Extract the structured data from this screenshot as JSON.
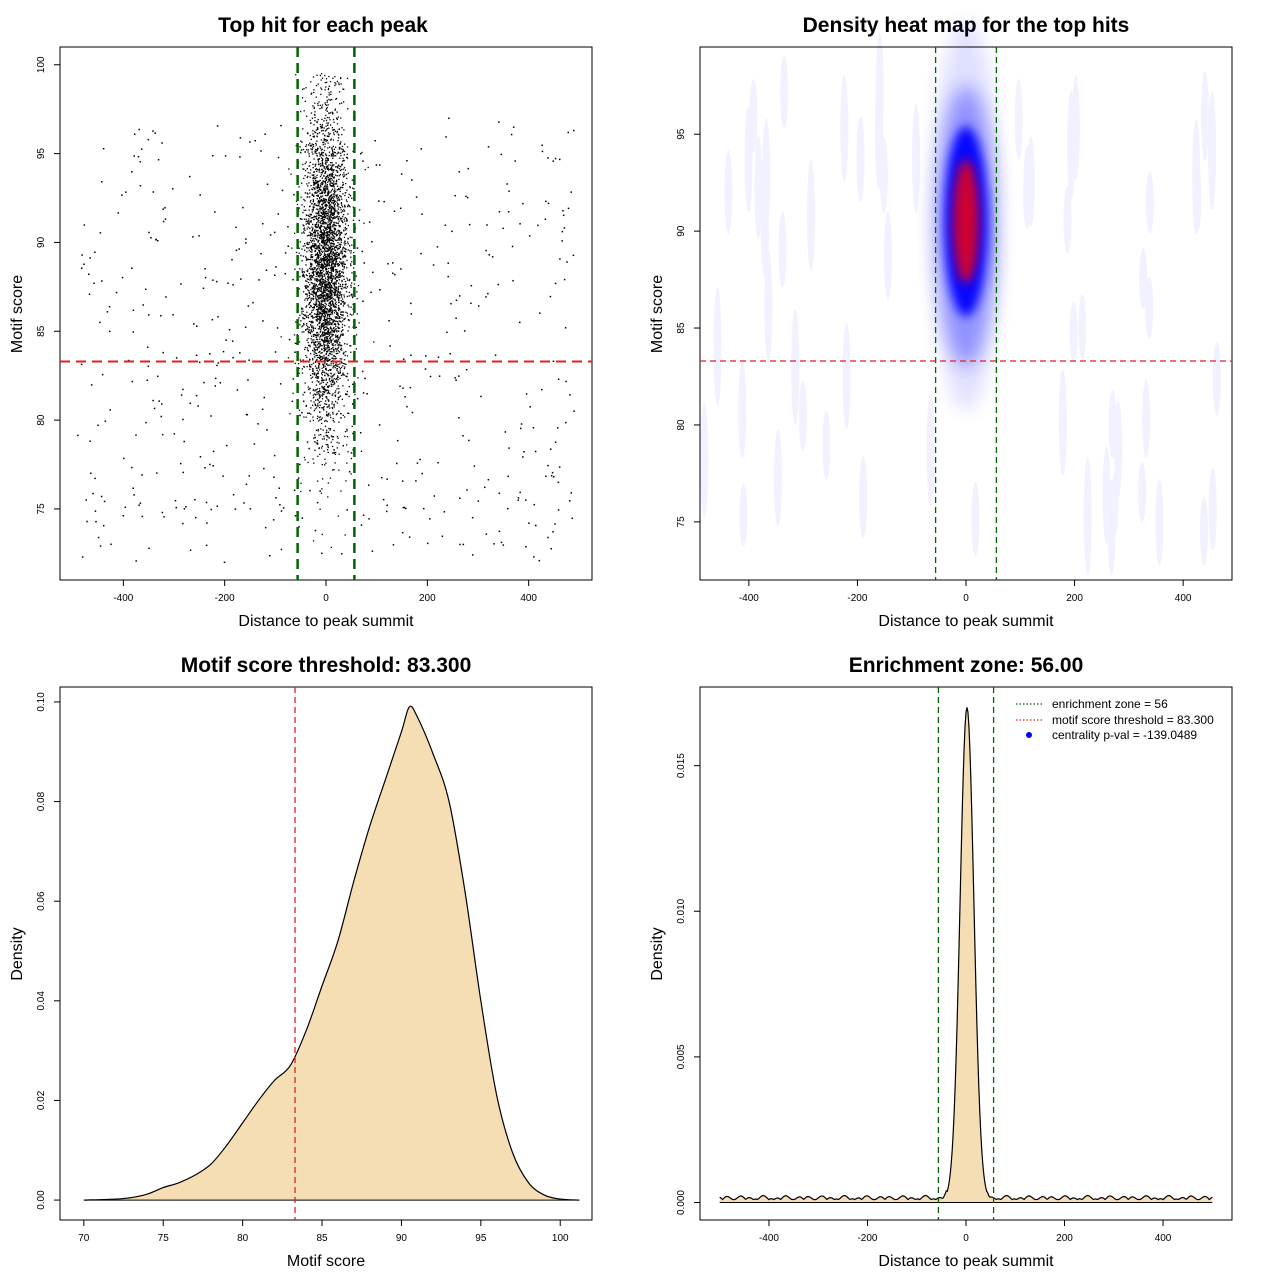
{
  "colors": {
    "points": "#000000",
    "zone_line": "#006400",
    "threshold_line": "#dd2222",
    "fill": "#f5deb3",
    "outline": "#000000",
    "heat_low": "#0000ff",
    "heat_high": "#ff0000",
    "legend_dot": "#0000ff"
  },
  "chart_data": [
    {
      "type": "scatter",
      "title": "Top hit for each peak",
      "xlabel": "Distance to peak summit",
      "ylabel": "Motif score",
      "xlim": [
        -525,
        525
      ],
      "ylim": [
        71,
        101
      ],
      "xticks": [
        -400,
        -200,
        0,
        200,
        400
      ],
      "xtick_labels": [
        "-400",
        "-200",
        "0",
        "200",
        "400"
      ],
      "yticks": [
        75,
        80,
        85,
        90,
        95,
        100
      ],
      "ytick_labels": [
        "75",
        "80",
        "85",
        "90",
        "95",
        "100"
      ],
      "vlines": [
        -56,
        56
      ],
      "hline": 83.3,
      "central_cluster": {
        "x_center": 0,
        "x_spread": 22,
        "y_center": 88.5,
        "y_spread": 4.5,
        "count": 3800
      },
      "background_points": {
        "x_range": [
          -490,
          490
        ],
        "y_range": [
          72,
          97
        ],
        "count": 560
      }
    },
    {
      "type": "heatmap",
      "title": "Density heat map for the top hits",
      "xlabel": "Distance to peak summit",
      "ylabel": "Motif score",
      "xlim": [
        -490,
        490
      ],
      "ylim": [
        72,
        99.5
      ],
      "xticks": [
        -400,
        -200,
        0,
        200,
        400
      ],
      "xtick_labels": [
        "-400",
        "-200",
        "0",
        "200",
        "400"
      ],
      "yticks": [
        75,
        80,
        85,
        90,
        95
      ],
      "ytick_labels": [
        "75",
        "80",
        "85",
        "90",
        "95"
      ],
      "vlines": [
        -56,
        56
      ],
      "hline": 83.3,
      "peak": {
        "x": 0,
        "y": 90.5
      }
    },
    {
      "type": "area",
      "title": "Motif score threshold: 83.300",
      "xlabel": "Motif score",
      "ylabel": "Density",
      "xlim": [
        68.5,
        102
      ],
      "ylim": [
        -0.004,
        0.103
      ],
      "xticks": [
        70,
        75,
        80,
        85,
        90,
        95,
        100
      ],
      "xtick_labels": [
        "70",
        "75",
        "80",
        "85",
        "90",
        "95",
        "100"
      ],
      "yticks": [
        0,
        0.02,
        0.04,
        0.06,
        0.08,
        0.1
      ],
      "ytick_labels": [
        "0.00",
        "0.02",
        "0.04",
        "0.06",
        "0.08",
        "0.10"
      ],
      "vline": 83.3,
      "x": [
        70,
        72,
        73,
        74,
        75,
        76,
        77,
        78,
        79,
        80,
        81,
        82,
        83,
        84,
        85,
        86,
        87,
        88,
        89,
        90,
        90.5,
        91,
        92,
        93,
        94,
        95,
        96,
        97,
        98,
        99,
        100,
        101.2
      ],
      "y": [
        0,
        0.0002,
        0.0005,
        0.0012,
        0.0025,
        0.0035,
        0.005,
        0.0072,
        0.011,
        0.0155,
        0.02,
        0.024,
        0.027,
        0.034,
        0.043,
        0.052,
        0.064,
        0.075,
        0.0845,
        0.094,
        0.099,
        0.097,
        0.0895,
        0.08,
        0.062,
        0.04,
        0.021,
        0.0095,
        0.0035,
        0.001,
        0.0002,
        0
      ]
    },
    {
      "type": "area",
      "title": "Enrichment zone: 56.00",
      "xlabel": "Distance to peak summit",
      "ylabel": "Density",
      "xlim": [
        -540,
        540
      ],
      "ylim": [
        -0.0006,
        0.0177
      ],
      "xticks": [
        -400,
        -200,
        0,
        200,
        400
      ],
      "xtick_labels": [
        "-400",
        "-200",
        "0",
        "200",
        "400"
      ],
      "yticks": [
        0,
        0.005,
        0.01,
        0.015
      ],
      "ytick_labels": [
        "0.000",
        "0.005",
        "0.010",
        "0.015"
      ],
      "vlines": [
        -56,
        56
      ],
      "peak": {
        "x": 2,
        "y": 0.0169,
        "sd": 14
      },
      "baseline": 0.0001,
      "x_range": [
        -500,
        500
      ],
      "legend": [
        {
          "label": "enrichment zone = 56",
          "kind": "dotted-line",
          "color": "#006400"
        },
        {
          "label": "motif score threshold = 83.300",
          "kind": "dotted-line",
          "color": "#dd2222"
        },
        {
          "label": "centrality p-val = -139.0489",
          "kind": "dot",
          "color": "#0000ff"
        }
      ]
    }
  ]
}
